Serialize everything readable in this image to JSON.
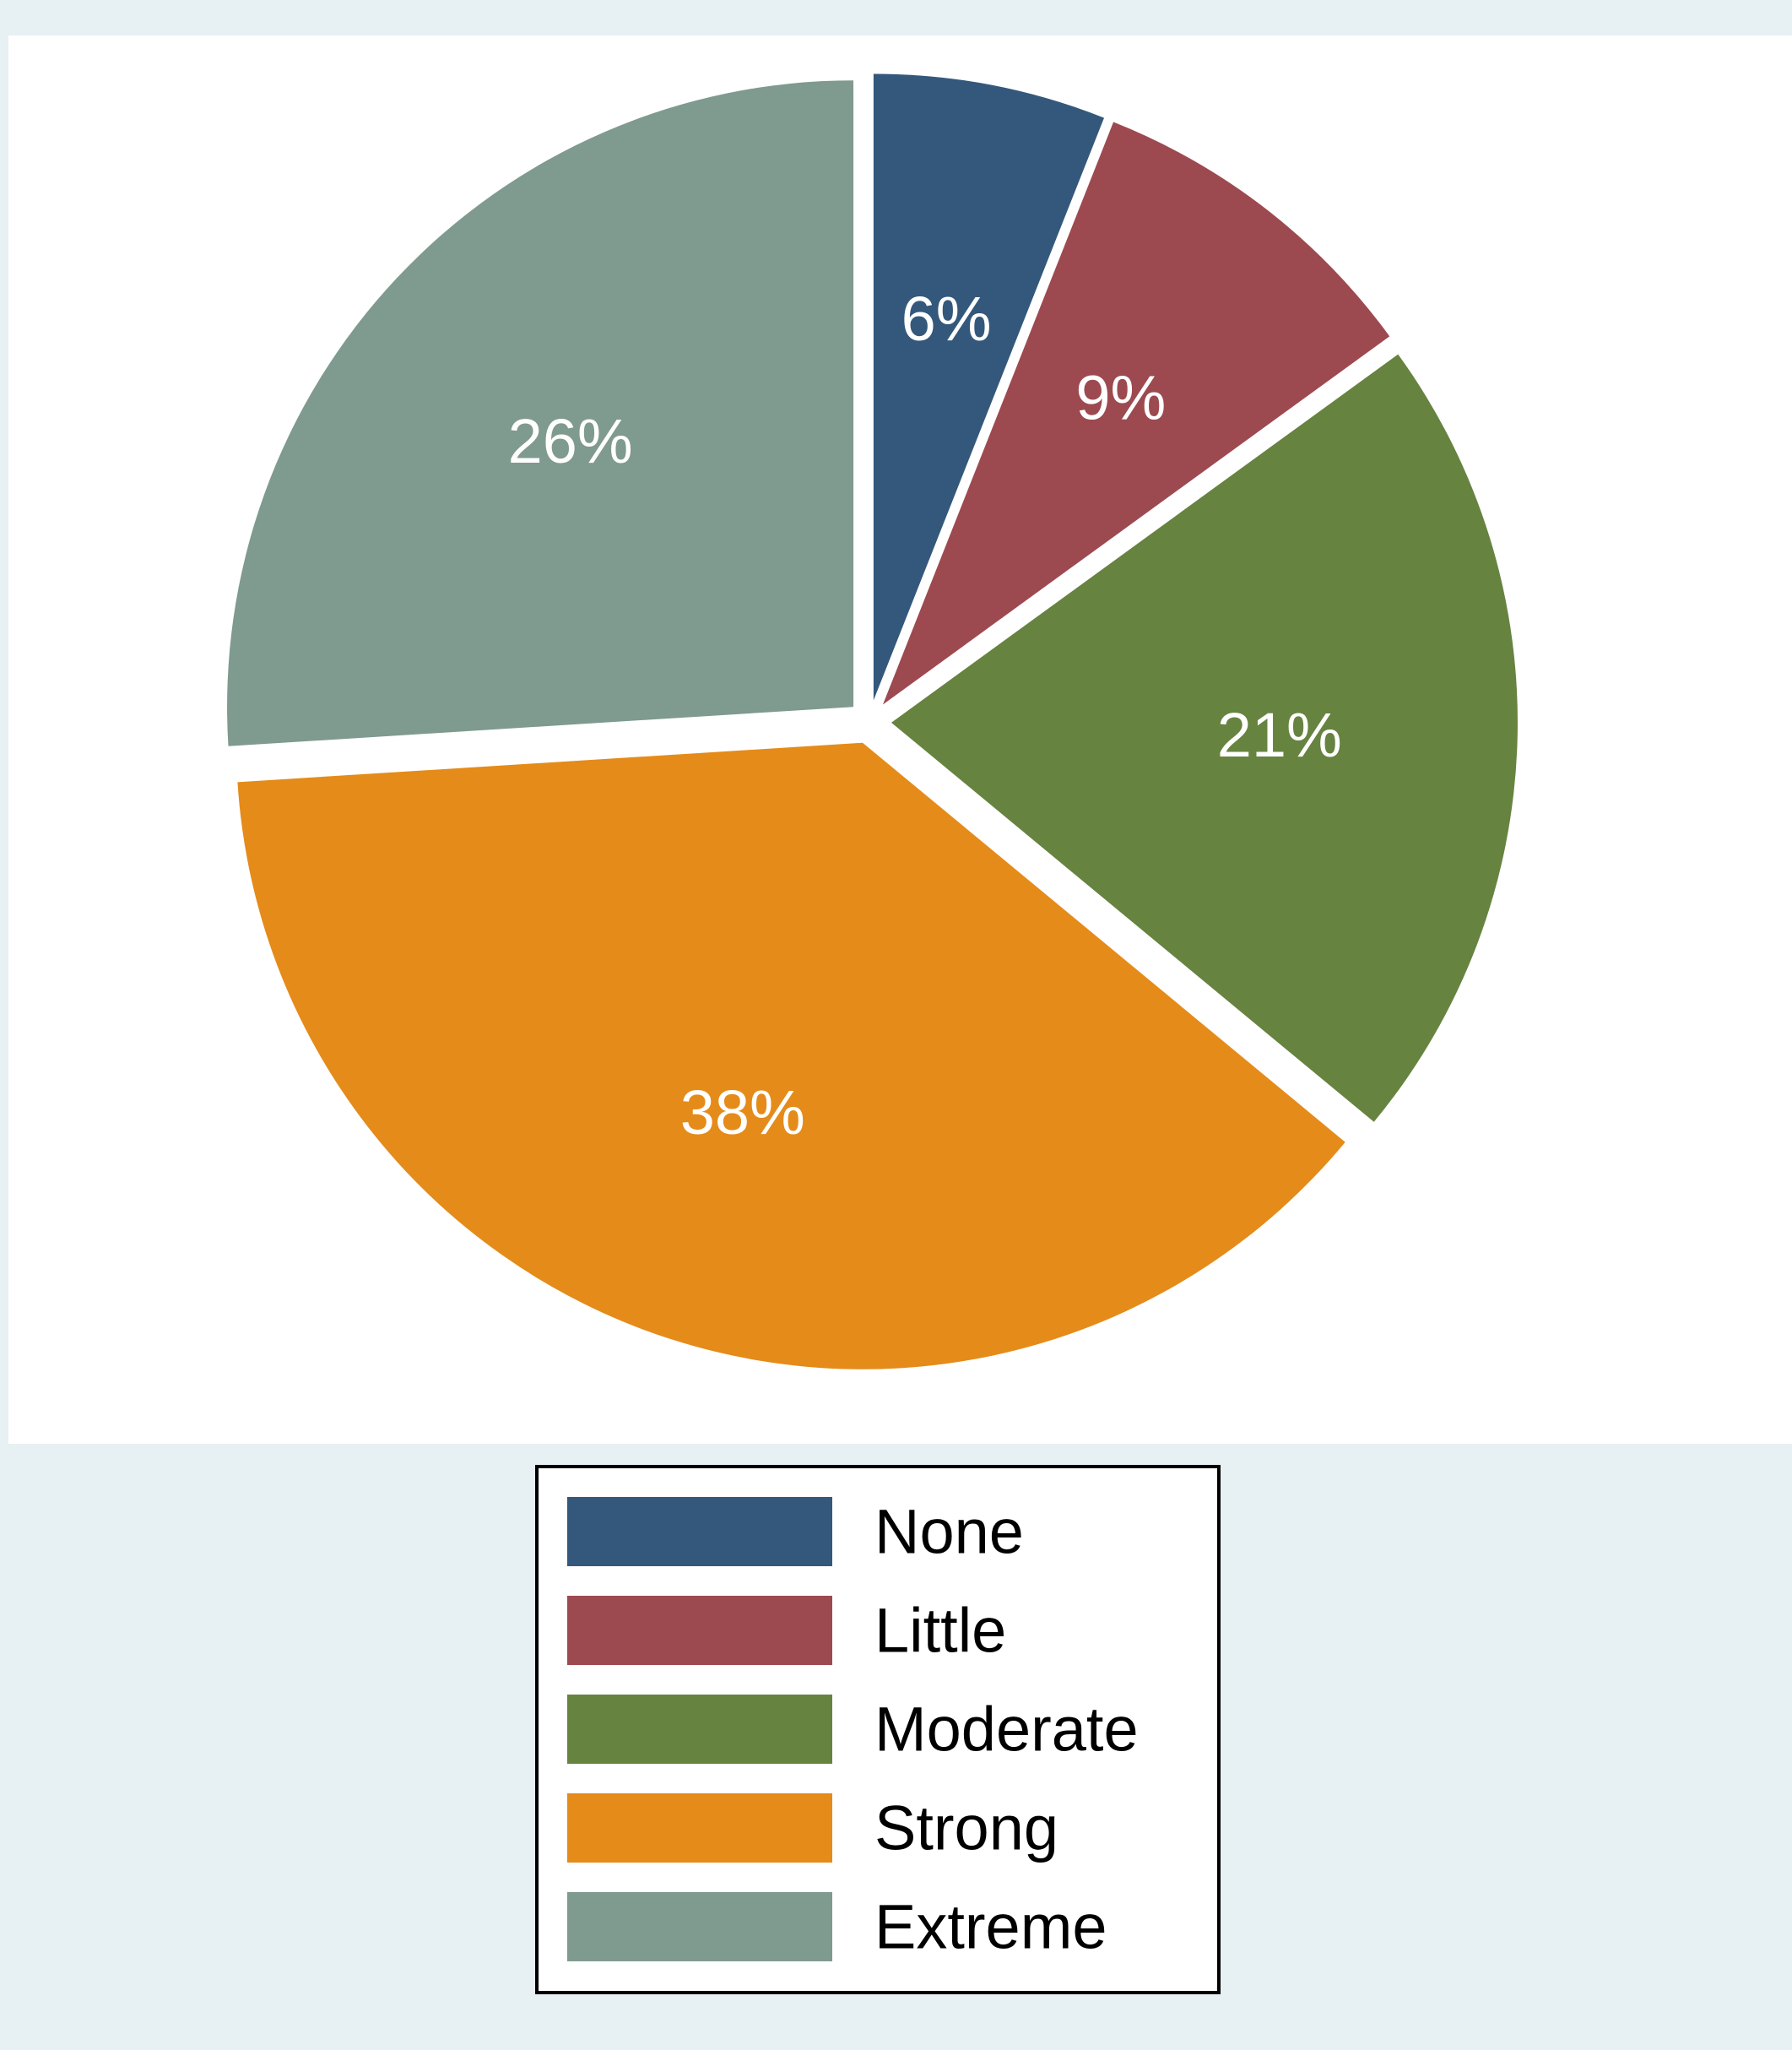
{
  "chart_data": {
    "type": "pie",
    "categories": [
      "None",
      "Little",
      "Moderate",
      "Strong",
      "Extreme"
    ],
    "values": [
      6,
      9,
      21,
      38,
      26
    ],
    "value_labels": [
      "6%",
      "9%",
      "21%",
      "38%",
      "26%"
    ],
    "colors": [
      "#34587C",
      "#9D4950",
      "#668340",
      "#E58B1A",
      "#7F9A8E"
    ],
    "exploded": true,
    "start_angle": "12 o'clock",
    "direction": "clockwise",
    "legend": {
      "position": "bottom",
      "entries": [
        "None",
        "Little",
        "Moderate",
        "Strong",
        "Extreme"
      ]
    },
    "background": {
      "plot": "#ffffff",
      "outer": "#E7F0F2"
    }
  }
}
